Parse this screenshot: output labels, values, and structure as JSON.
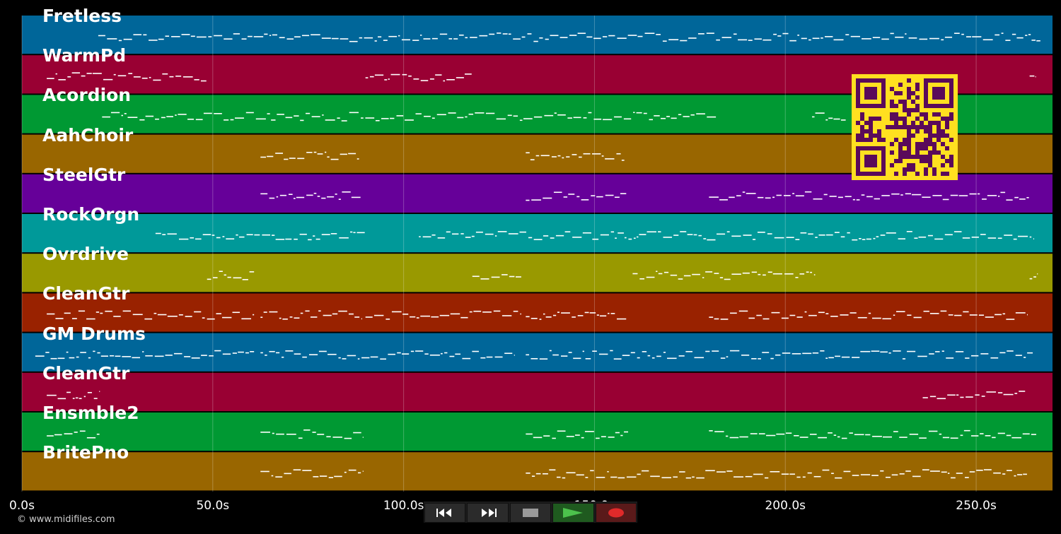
{
  "colors": {
    "rows": [
      "#006699",
      "#990033",
      "#009933",
      "#996600",
      "#660099",
      "#009999",
      "#999900",
      "#992200"
    ],
    "note": "#ffffff",
    "qr_fg": "#5a0a5a",
    "qr_bg": "#ffe020"
  },
  "tracks": [
    {
      "name": "Fretless"
    },
    {
      "name": "WarmPd"
    },
    {
      "name": "Acordion"
    },
    {
      "name": "AahChoir"
    },
    {
      "name": "SteelGtr"
    },
    {
      "name": "RockOrgn"
    },
    {
      "name": "Ovrdrive"
    },
    {
      "name": "CleanGtr"
    },
    {
      "name": "GM Drums"
    },
    {
      "name": "CleanGtr"
    },
    {
      "name": "Ensmble2"
    },
    {
      "name": "BritePno"
    }
  ],
  "timeline": {
    "unit": "s",
    "max_seconds": 270,
    "ticks": [
      "0.0s",
      "50.0s",
      "100.0s",
      "150.0s",
      "200.0s",
      "250.0s"
    ],
    "tick_values": [
      0,
      50,
      100,
      150,
      200,
      250
    ]
  },
  "note_spans": [
    [
      [
        20,
        267
      ]
    ],
    [
      [
        6.5,
        48.5
      ],
      [
        90,
        118
      ],
      [
        264,
        265.5
      ]
    ],
    [
      [
        21,
        182
      ],
      [
        207,
        216
      ]
    ],
    [
      [
        62.5,
        88.5
      ],
      [
        132,
        158
      ]
    ],
    [
      [
        62.5,
        89
      ],
      [
        132,
        158.5
      ],
      [
        180,
        264
      ]
    ],
    [
      [
        35,
        90
      ],
      [
        104,
        265
      ]
    ],
    [
      [
        48.5,
        61
      ],
      [
        118,
        131
      ],
      [
        160,
        208
      ],
      [
        264,
        266
      ]
    ],
    [
      [
        6.5,
        61
      ],
      [
        62.5,
        89
      ],
      [
        90,
        131
      ],
      [
        132,
        158.5
      ],
      [
        180,
        263.5
      ]
    ],
    [
      [
        3.5,
        61
      ],
      [
        62.5,
        129
      ],
      [
        132,
        265
      ]
    ],
    [
      [
        6.5,
        20.5
      ],
      [
        236,
        263
      ]
    ],
    [
      [
        6.5,
        20.5
      ],
      [
        62.5,
        89.5
      ],
      [
        132,
        159
      ],
      [
        180,
        266
      ]
    ],
    [
      [
        62.5,
        89.5
      ],
      [
        132,
        263.5
      ]
    ]
  ],
  "controls": {
    "rewind": "rewind-icon",
    "fast_forward": "fast-forward-icon",
    "stop": "stop-icon",
    "play": "play-icon",
    "record": "record-icon"
  },
  "copyright": "© www.midifiles.com"
}
